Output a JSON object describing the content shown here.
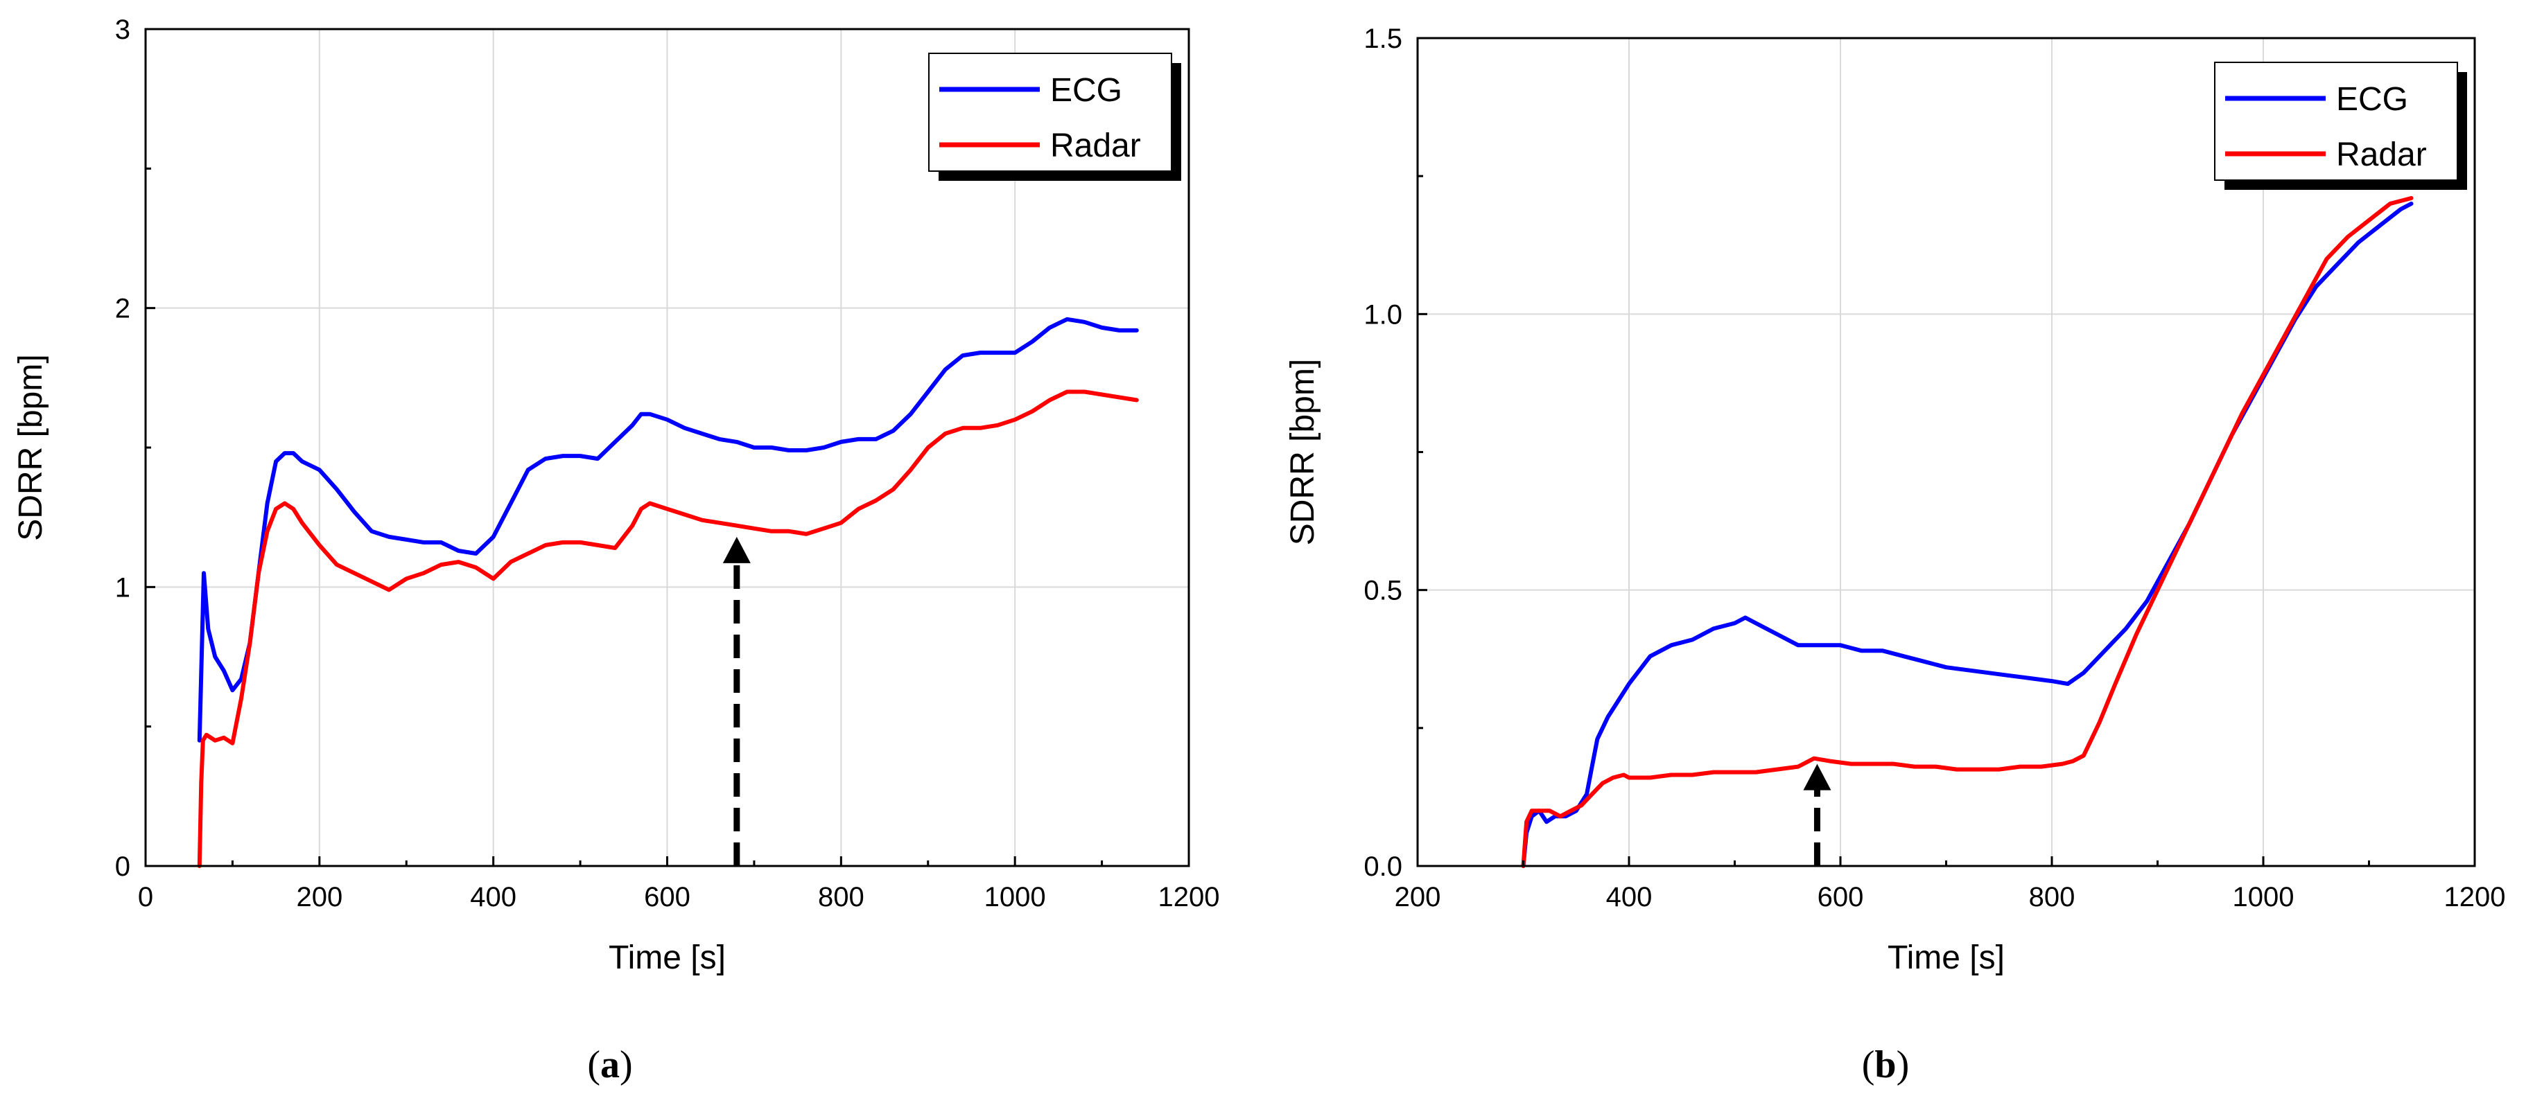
{
  "chart_data": [
    {
      "type": "line",
      "caption_letter": "a",
      "xlabel": "Time [s]",
      "ylabel": "SDRR [bpm]",
      "xlim": [
        0,
        1200
      ],
      "ylim": [
        0,
        3
      ],
      "xticks": [
        "0",
        "200",
        "400",
        "600",
        "800",
        "1000",
        "1200"
      ],
      "yticks": [
        "0",
        "1",
        "2",
        "3"
      ],
      "grid": true,
      "legend_position": "top-right",
      "arrow": {
        "x": 680,
        "y_from": 0,
        "y_to": 1.18
      },
      "series": [
        {
          "name": "ECG",
          "color": "#0000ff",
          "x": [
            62,
            67,
            72,
            80,
            90,
            100,
            110,
            120,
            130,
            140,
            150,
            160,
            170,
            180,
            200,
            220,
            240,
            260,
            280,
            300,
            320,
            340,
            360,
            380,
            400,
            420,
            440,
            460,
            480,
            500,
            520,
            540,
            560,
            570,
            580,
            600,
            620,
            640,
            660,
            680,
            700,
            720,
            740,
            760,
            780,
            800,
            820,
            840,
            860,
            880,
            900,
            920,
            940,
            960,
            980,
            1000,
            1020,
            1040,
            1060,
            1080,
            1100,
            1120,
            1140
          ],
          "y": [
            0.45,
            1.05,
            0.85,
            0.75,
            0.7,
            0.63,
            0.67,
            0.8,
            1.05,
            1.3,
            1.45,
            1.48,
            1.48,
            1.45,
            1.42,
            1.35,
            1.27,
            1.2,
            1.18,
            1.17,
            1.16,
            1.16,
            1.13,
            1.12,
            1.18,
            1.3,
            1.42,
            1.46,
            1.47,
            1.47,
            1.46,
            1.52,
            1.58,
            1.62,
            1.62,
            1.6,
            1.57,
            1.55,
            1.53,
            1.52,
            1.5,
            1.5,
            1.49,
            1.49,
            1.5,
            1.52,
            1.53,
            1.53,
            1.56,
            1.62,
            1.7,
            1.78,
            1.83,
            1.84,
            1.84,
            1.84,
            1.88,
            1.93,
            1.96,
            1.95,
            1.93,
            1.92,
            1.92
          ]
        },
        {
          "name": "Radar",
          "color": "#ff0000",
          "x": [
            62,
            64,
            66,
            70,
            80,
            90,
            100,
            110,
            120,
            130,
            140,
            150,
            160,
            170,
            180,
            200,
            220,
            240,
            260,
            280,
            300,
            320,
            340,
            360,
            380,
            400,
            420,
            440,
            460,
            480,
            500,
            520,
            540,
            560,
            570,
            580,
            600,
            620,
            640,
            660,
            680,
            700,
            720,
            740,
            760,
            780,
            800,
            820,
            840,
            860,
            880,
            900,
            920,
            940,
            960,
            980,
            1000,
            1020,
            1040,
            1060,
            1080,
            1100,
            1120,
            1140
          ],
          "y": [
            0.0,
            0.3,
            0.45,
            0.47,
            0.45,
            0.46,
            0.44,
            0.6,
            0.8,
            1.05,
            1.2,
            1.28,
            1.3,
            1.28,
            1.23,
            1.15,
            1.08,
            1.05,
            1.02,
            0.99,
            1.03,
            1.05,
            1.08,
            1.09,
            1.07,
            1.03,
            1.09,
            1.12,
            1.15,
            1.16,
            1.16,
            1.15,
            1.14,
            1.22,
            1.28,
            1.3,
            1.28,
            1.26,
            1.24,
            1.23,
            1.22,
            1.21,
            1.2,
            1.2,
            1.19,
            1.21,
            1.23,
            1.28,
            1.31,
            1.35,
            1.42,
            1.5,
            1.55,
            1.57,
            1.57,
            1.58,
            1.6,
            1.63,
            1.67,
            1.7,
            1.7,
            1.69,
            1.68,
            1.67
          ]
        }
      ]
    },
    {
      "type": "line",
      "caption_letter": "b",
      "xlabel": "Time [s]",
      "ylabel": "SDRR [bpm]",
      "xlim": [
        200,
        1200
      ],
      "ylim": [
        0,
        1.5
      ],
      "xticks": [
        "200",
        "400",
        "600",
        "800",
        "1000",
        "1200"
      ],
      "yticks": [
        "0.0",
        "0.5",
        "1.0",
        "1.5"
      ],
      "grid": true,
      "legend_position": "top-right",
      "arrow": {
        "x": 578,
        "y_from": 0,
        "y_to": 0.185
      },
      "series": [
        {
          "name": "ECG",
          "color": "#0000ff",
          "x": [
            300,
            303,
            308,
            315,
            322,
            330,
            340,
            350,
            360,
            365,
            370,
            380,
            390,
            400,
            420,
            440,
            460,
            480,
            500,
            510,
            520,
            540,
            560,
            580,
            600,
            620,
            640,
            660,
            680,
            700,
            720,
            740,
            760,
            780,
            800,
            815,
            830,
            850,
            870,
            890,
            910,
            930,
            950,
            970,
            990,
            1010,
            1030,
            1050,
            1070,
            1090,
            1110,
            1130,
            1140
          ],
          "y": [
            0.0,
            0.06,
            0.09,
            0.1,
            0.08,
            0.09,
            0.09,
            0.1,
            0.13,
            0.18,
            0.23,
            0.27,
            0.3,
            0.33,
            0.38,
            0.4,
            0.41,
            0.43,
            0.44,
            0.45,
            0.44,
            0.42,
            0.4,
            0.4,
            0.4,
            0.39,
            0.39,
            0.38,
            0.37,
            0.36,
            0.355,
            0.35,
            0.345,
            0.34,
            0.335,
            0.33,
            0.35,
            0.39,
            0.43,
            0.48,
            0.55,
            0.62,
            0.7,
            0.78,
            0.85,
            0.92,
            0.99,
            1.05,
            1.09,
            1.13,
            1.16,
            1.19,
            1.2
          ]
        },
        {
          "name": "Radar",
          "color": "#ff0000",
          "x": [
            300,
            303,
            308,
            315,
            325,
            335,
            345,
            355,
            365,
            375,
            385,
            395,
            400,
            420,
            440,
            460,
            480,
            500,
            520,
            540,
            560,
            575,
            590,
            610,
            630,
            650,
            670,
            690,
            710,
            730,
            750,
            770,
            790,
            810,
            820,
            830,
            845,
            860,
            880,
            900,
            920,
            940,
            960,
            980,
            1000,
            1020,
            1040,
            1060,
            1080,
            1100,
            1120,
            1140
          ],
          "y": [
            0.0,
            0.08,
            0.1,
            0.1,
            0.1,
            0.09,
            0.1,
            0.11,
            0.13,
            0.15,
            0.16,
            0.165,
            0.16,
            0.16,
            0.165,
            0.165,
            0.17,
            0.17,
            0.17,
            0.175,
            0.18,
            0.195,
            0.19,
            0.185,
            0.185,
            0.185,
            0.18,
            0.18,
            0.175,
            0.175,
            0.175,
            0.18,
            0.18,
            0.185,
            0.19,
            0.2,
            0.26,
            0.33,
            0.42,
            0.5,
            0.58,
            0.66,
            0.74,
            0.82,
            0.89,
            0.96,
            1.03,
            1.1,
            1.14,
            1.17,
            1.2,
            1.21
          ]
        }
      ]
    }
  ]
}
